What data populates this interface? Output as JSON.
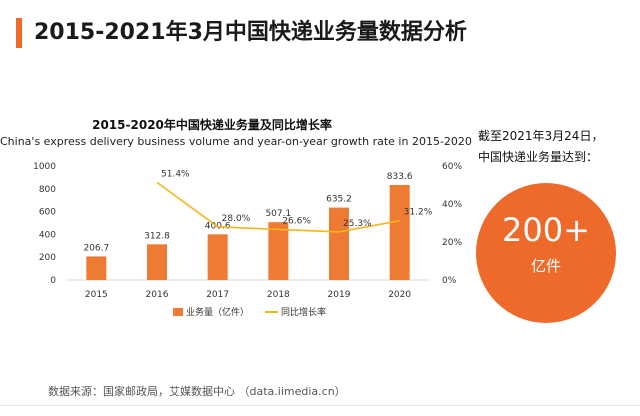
{
  "page": {
    "title": "2015-2021年3月中国快递业务量数据分析",
    "source": "数据来源：国家邮政局，艾媒数据中心 （data.iimedia.cn）"
  },
  "side": {
    "line1": "截至2021年3月24日，",
    "line2": "中国快递业务量达到：",
    "big_number": "200+",
    "big_unit": "亿件"
  },
  "colors": {
    "accent": "#ee6a2a",
    "bar": "#ee7a33",
    "line": "#f7b51c"
  },
  "chart_data": {
    "type": "bar",
    "title": "2015-2020年中国快递业务量及同比增长率",
    "subtitle": "China's express delivery business volume and year-on-year growth rate in 2015-2020",
    "categories": [
      "2015",
      "2016",
      "2017",
      "2018",
      "2019",
      "2020"
    ],
    "series": [
      {
        "name": "业务量（亿件）",
        "type": "bar",
        "axis": "left",
        "values": [
          206.7,
          312.8,
          400.6,
          507.1,
          635.2,
          833.6
        ],
        "labels": [
          "206.7",
          "312.8",
          "400.6",
          "507.1",
          "635.2",
          "833.6"
        ]
      },
      {
        "name": "同比增长率",
        "type": "line",
        "axis": "right",
        "values": [
          null,
          51.4,
          28.0,
          26.6,
          25.3,
          31.2
        ],
        "labels": [
          "",
          "51.4%",
          "28.0%",
          "26.6%",
          "25.3%",
          "31.2%"
        ]
      }
    ],
    "ylim_left": [
      0,
      1000
    ],
    "yticks_left": [
      "0",
      "200",
      "400",
      "600",
      "800",
      "1000"
    ],
    "ylim_right": [
      0,
      60
    ],
    "yticks_right": [
      "0%",
      "20%",
      "40%",
      "60%"
    ],
    "grid": false,
    "legend_position": "bottom"
  }
}
